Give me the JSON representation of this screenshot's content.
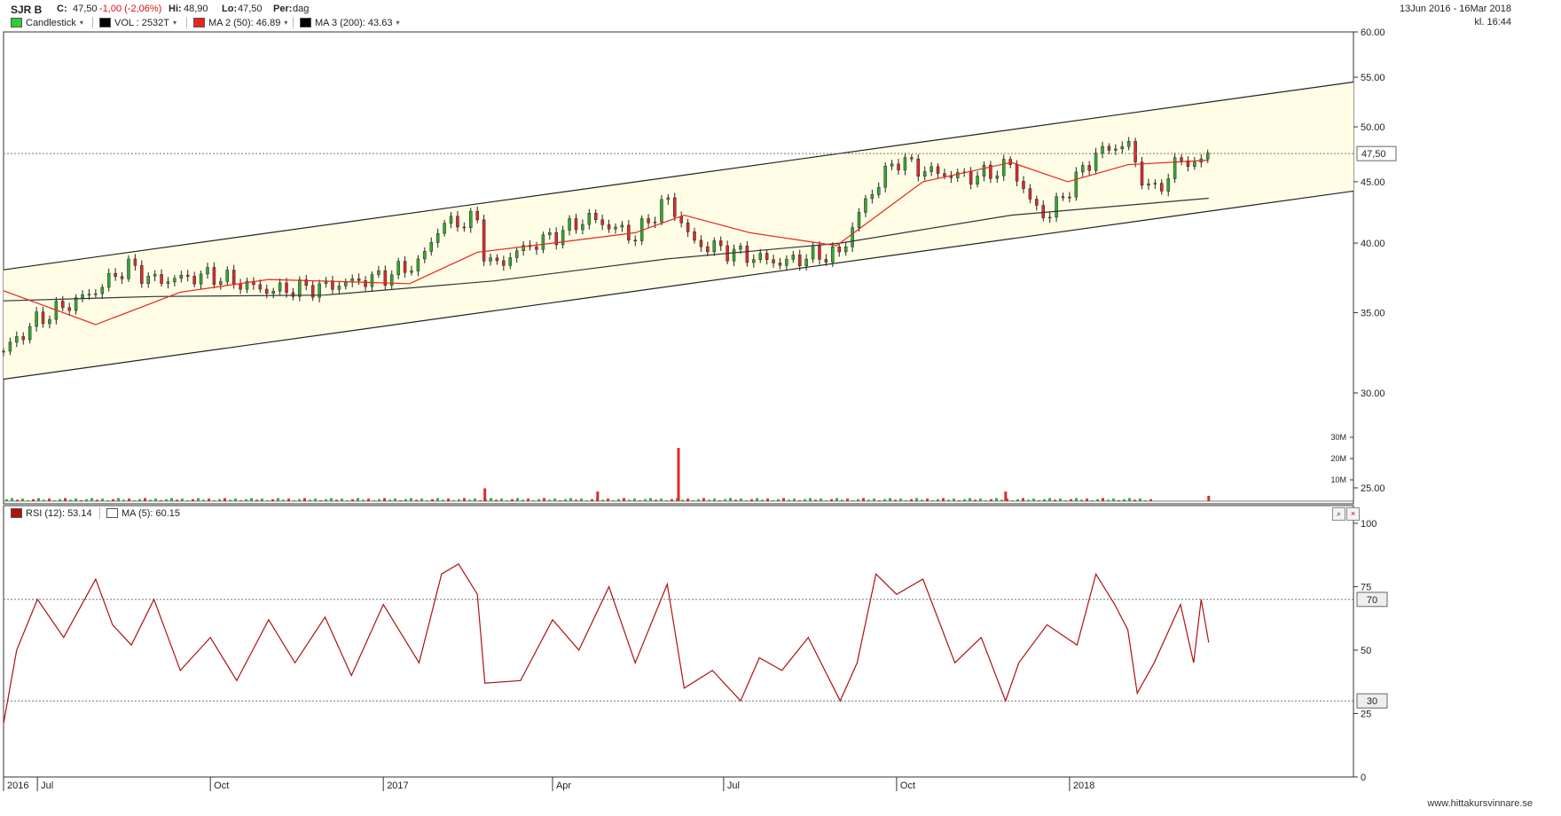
{
  "header": {
    "ticker": "SJR B",
    "close_label": "C:",
    "close_value": "47,50",
    "change": "-1,00 (-2,06%)",
    "hi_label": "Hi:",
    "hi_value": "48,90",
    "lo_label": "Lo:",
    "lo_value": "47,50",
    "per_label": "Per:",
    "per_value": "dag",
    "date_range": "13Jun 2016 - 16Mar 2018",
    "time": "kl. 16:44"
  },
  "legend": [
    {
      "label": "Candlestick",
      "color": "#33cc33"
    },
    {
      "label": "VOL : 2532T",
      "color": "#000000"
    },
    {
      "label": "MA 2 (50): 46.89",
      "color": "#e8251c"
    },
    {
      "label": "MA 3 (200): 43.63",
      "color": "#000000"
    }
  ],
  "rsi_legend": [
    {
      "label": "RSI (12): 53.14",
      "color": "#b01010"
    },
    {
      "label": "MA (5): 60.15",
      "color": "#ffffff"
    }
  ],
  "watermark": "www.hittakursvinnare.se",
  "colors": {
    "up": "#33aa33",
    "down": "#dd2b2b",
    "ma50": "#e8251c",
    "ma200": "#333333",
    "rsi": "#b01010",
    "channel_fill": "#fffde6"
  },
  "chart_data": [
    {
      "type": "candlestick",
      "ylim": [
        25,
        60
      ],
      "scale": "log",
      "y_ticks": [
        "60.00",
        "55.00",
        "50.00",
        "45.00",
        "40.00",
        "35.00",
        "30.00",
        "25.00"
      ],
      "x_ticks": [
        "2016",
        "Jul",
        "Oct",
        "2017",
        "Apr",
        "Jul",
        "Oct",
        "2018"
      ],
      "last_price_label": "47,50",
      "close_series": {
        "dates": [
          "2016-06-13",
          "2016-07-01",
          "2016-08-01",
          "2016-08-18",
          "2016-09-01",
          "2016-10-01",
          "2016-11-01",
          "2016-12-01",
          "2017-01-01",
          "2017-01-20",
          "2017-02-01",
          "2017-02-20",
          "2017-02-24",
          "2017-03-01",
          "2017-03-15",
          "2017-04-01",
          "2017-04-20",
          "2017-05-15",
          "2017-06-01",
          "2017-06-15",
          "2017-07-01",
          "2017-07-15",
          "2017-08-01",
          "2017-08-15",
          "2017-09-01",
          "2017-09-15",
          "2017-10-01",
          "2017-10-15",
          "2017-11-01",
          "2017-11-15",
          "2017-12-01",
          "2017-12-10",
          "2017-12-20",
          "2018-01-01",
          "2018-01-15",
          "2018-02-01",
          "2018-02-06",
          "2018-02-15",
          "2018-03-01",
          "2018-03-10",
          "2018-03-16"
        ],
        "values": [
          32.5,
          34.5,
          36.5,
          38.3,
          37.2,
          37.6,
          36.5,
          36.8,
          37.5,
          38.5,
          41.5,
          41.8,
          39.0,
          38.2,
          39.5,
          40.5,
          42.0,
          40.5,
          43.5,
          40.0,
          39.5,
          39.0,
          38.5,
          39.0,
          39.2,
          43.5,
          47.0,
          46.0,
          45.5,
          45.5,
          46.5,
          43.5,
          42.0,
          44.5,
          47.5,
          48.5,
          46.0,
          44.0,
          47.0,
          46.5,
          47.5
        ]
      },
      "ma50": {
        "dates": [
          "2016-06-13",
          "2016-08-01",
          "2016-09-15",
          "2016-11-01",
          "2017-01-15",
          "2017-02-20",
          "2017-04-01",
          "2017-05-15",
          "2017-06-10",
          "2017-07-15",
          "2017-08-30",
          "2017-10-15",
          "2017-12-01",
          "2017-12-31",
          "2018-02-01",
          "2018-03-16"
        ],
        "values": [
          36.5,
          34.2,
          36.4,
          37.3,
          37.0,
          39.3,
          40.0,
          40.8,
          42.2,
          40.8,
          39.8,
          45.0,
          46.7,
          45.0,
          46.5,
          46.9
        ]
      },
      "ma200": {
        "dates": [
          "2016-06-13",
          "2016-09-01",
          "2016-12-01",
          "2017-03-01",
          "2017-06-01",
          "2017-09-01",
          "2017-12-01",
          "2018-03-16"
        ],
        "values": [
          35.8,
          36.1,
          36.2,
          37.2,
          38.8,
          40.0,
          42.2,
          43.6
        ]
      },
      "channel": {
        "upper": {
          "dates": [
            "2016-06-13",
            "2018-06-01"
          ],
          "values": [
            38.0,
            54.5
          ]
        },
        "lower": {
          "dates": [
            "2016-06-13",
            "2018-06-01"
          ],
          "values": [
            30.8,
            44.2
          ]
        }
      },
      "volume": {
        "y_ticks": [
          "30M",
          "20M",
          "10M"
        ],
        "spikes": [
          {
            "date": "2017-02-24",
            "value": 6000000
          },
          {
            "date": "2017-04-25",
            "value": 4500000
          },
          {
            "date": "2017-06-07",
            "value": 25000000
          },
          {
            "date": "2017-11-28",
            "value": 4500000
          },
          {
            "date": "2018-03-16",
            "value": 2500000
          }
        ]
      }
    },
    {
      "type": "line",
      "series": [
        {
          "name": "RSI (12)",
          "dates": [
            "2016-06-13",
            "2016-06-20",
            "2016-07-01",
            "2016-07-15",
            "2016-08-01",
            "2016-08-10",
            "2016-08-20",
            "2016-09-01",
            "2016-09-15",
            "2016-10-01",
            "2016-10-15",
            "2016-11-01",
            "2016-11-15",
            "2016-12-01",
            "2016-12-15",
            "2017-01-01",
            "2017-01-20",
            "2017-02-01",
            "2017-02-10",
            "2017-02-20",
            "2017-02-24",
            "2017-03-15",
            "2017-04-01",
            "2017-04-15",
            "2017-05-01",
            "2017-05-15",
            "2017-06-01",
            "2017-06-10",
            "2017-06-25",
            "2017-07-10",
            "2017-07-20",
            "2017-08-01",
            "2017-08-15",
            "2017-09-01",
            "2017-09-10",
            "2017-09-20",
            "2017-10-01",
            "2017-10-15",
            "2017-11-01",
            "2017-11-15",
            "2017-11-28",
            "2017-12-05",
            "2017-12-20",
            "2018-01-05",
            "2018-01-15",
            "2018-01-25",
            "2018-02-01",
            "2018-02-06",
            "2018-02-15",
            "2018-03-01",
            "2018-03-08",
            "2018-03-12",
            "2018-03-16"
          ],
          "values": [
            21,
            50,
            70,
            55,
            78,
            60,
            52,
            70,
            42,
            55,
            38,
            62,
            45,
            63,
            40,
            68,
            45,
            80,
            84,
            72,
            37,
            38,
            62,
            50,
            75,
            45,
            76,
            35,
            42,
            30,
            47,
            42,
            55,
            30,
            45,
            80,
            72,
            78,
            45,
            55,
            30,
            45,
            60,
            52,
            80,
            68,
            58,
            33,
            45,
            68,
            45,
            70,
            53
          ]
        }
      ],
      "ylim": [
        0,
        100
      ],
      "y_ticks": [
        "100",
        "75",
        "50",
        "25",
        "0"
      ],
      "levels": [
        "70",
        "30"
      ]
    }
  ]
}
